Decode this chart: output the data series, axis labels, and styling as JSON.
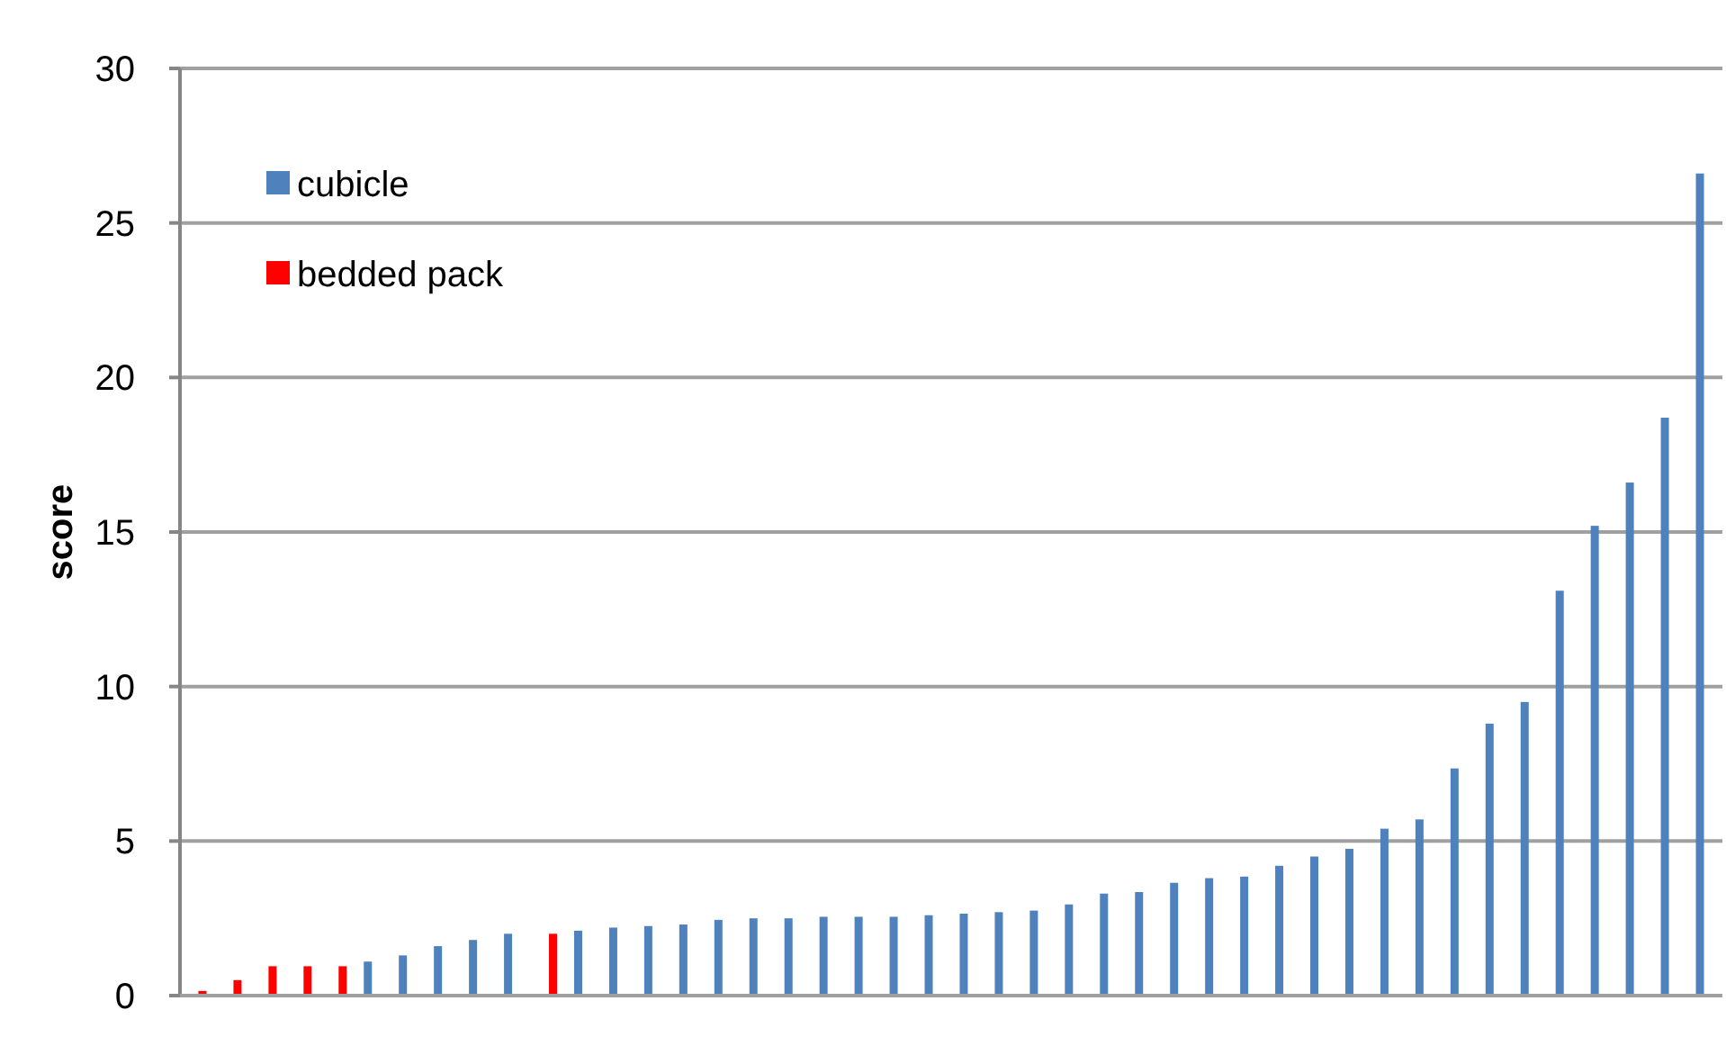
{
  "chart_data": {
    "type": "bar",
    "ylabel": "score",
    "categories": [
      null,
      null,
      null,
      null,
      null,
      null,
      null,
      null,
      null,
      null,
      null,
      null,
      null,
      null,
      null,
      null,
      null,
      null,
      null,
      null,
      null,
      null,
      null,
      null,
      null,
      null,
      null,
      null,
      null,
      null,
      null,
      null,
      null,
      null,
      null,
      null,
      null,
      null,
      null,
      null,
      null,
      null,
      null,
      null
    ],
    "series": [
      {
        "name": "cubicle",
        "color": "#4f81bd",
        "values": [
          null,
          null,
          null,
          null,
          null,
          1.1,
          1.3,
          1.6,
          1.8,
          2.0,
          null,
          2.1,
          2.2,
          2.25,
          2.3,
          2.45,
          2.5,
          2.5,
          2.55,
          2.55,
          2.55,
          2.6,
          2.65,
          2.7,
          2.75,
          2.95,
          3.3,
          3.35,
          3.65,
          3.8,
          3.85,
          4.2,
          4.5,
          4.75,
          5.4,
          5.7,
          7.35,
          8.8,
          9.5,
          13.1,
          15.2,
          16.6,
          18.7,
          26.6
        ]
      },
      {
        "name": "bedded pack",
        "color": "#ff0000",
        "values": [
          0.15,
          0.5,
          0.95,
          0.95,
          0.95,
          null,
          null,
          null,
          null,
          null,
          2.0,
          null,
          null,
          null,
          null,
          null,
          null,
          null,
          null,
          null,
          null,
          null,
          null,
          null,
          null,
          null,
          null,
          null,
          null,
          null,
          null,
          null,
          null,
          null,
          null,
          null,
          null,
          null,
          null,
          null,
          null,
          null,
          null,
          null
        ]
      }
    ],
    "ylim": [
      0,
      30
    ],
    "yticks": [
      0,
      5,
      10,
      15,
      20,
      25,
      30
    ],
    "grid": "y",
    "legend": "top left"
  }
}
